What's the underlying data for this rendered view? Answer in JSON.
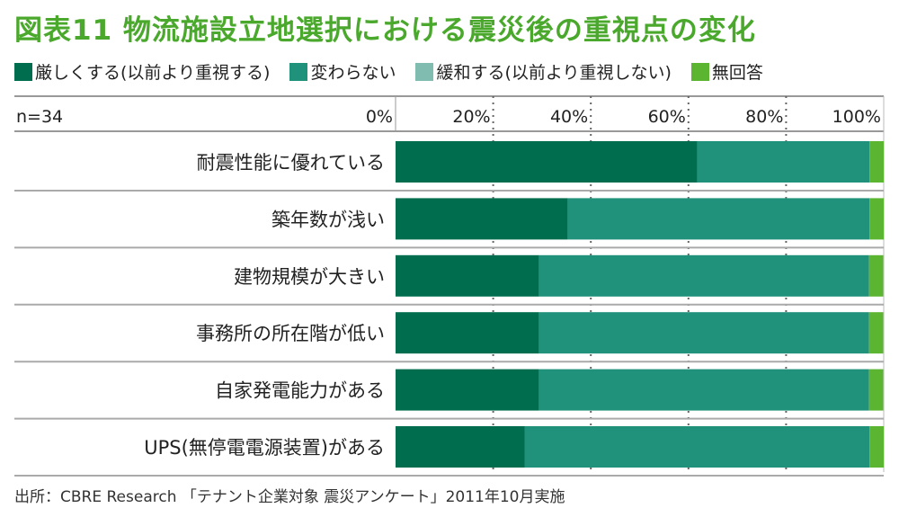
{
  "chart_data": {
    "type": "bar",
    "orientation": "horizontal",
    "stacked": true,
    "title": "図表11 物流施設立地選択における震災後の重視点の変化",
    "n_label": "n=34",
    "categories": [
      "耐震性能に優れている",
      "築年数が浅い",
      "建物規模が大きい",
      "事務所の所在階が低い",
      "自家発電能力がある",
      "UPS(無停電電源装置)がある"
    ],
    "series": [
      {
        "name": "厳しくする(以前より重視する)",
        "color": "#006e4e",
        "values": [
          61.8,
          35.3,
          29.4,
          29.4,
          29.4,
          26.5
        ]
      },
      {
        "name": "変わらない",
        "color": "#20917a",
        "values": [
          35.3,
          61.8,
          67.6,
          67.6,
          67.6,
          70.6
        ]
      },
      {
        "name": "緩和する(以前より重視しない)",
        "color": "#80bdb0",
        "values": [
          0,
          0,
          0,
          0,
          0,
          0
        ]
      },
      {
        "name": "無回答",
        "color": "#5cb531",
        "values": [
          2.9,
          2.9,
          2.9,
          2.9,
          2.9,
          2.9
        ]
      }
    ],
    "xlim": [
      0,
      100
    ],
    "xticks": [
      "0%",
      "20%",
      "40%",
      "60%",
      "80%",
      "100%"
    ],
    "grid": true,
    "legend_position": "top"
  },
  "source": "出所：CBRE Research 「テナント企業対象 震災アンケート」2011年10月実施"
}
